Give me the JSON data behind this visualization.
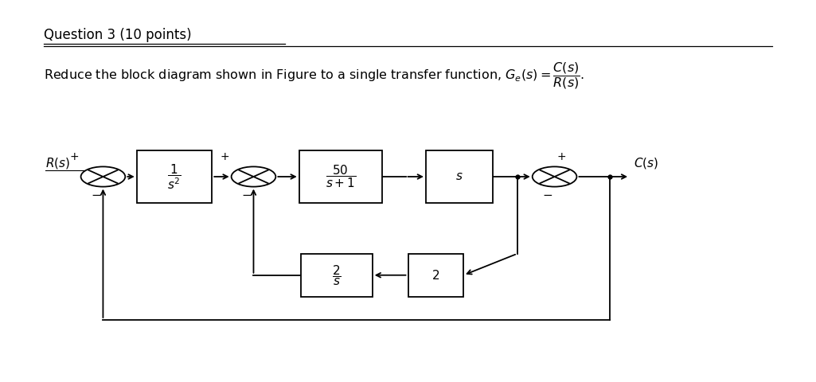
{
  "title": "Question 3 (10 points)",
  "background_color": "#ffffff",
  "text_color": "#000000",
  "line_color": "#000000",
  "block_facecolor": "#ffffff",
  "block_edgecolor": "#000000",
  "fig_width": 10.25,
  "fig_height": 4.8
}
